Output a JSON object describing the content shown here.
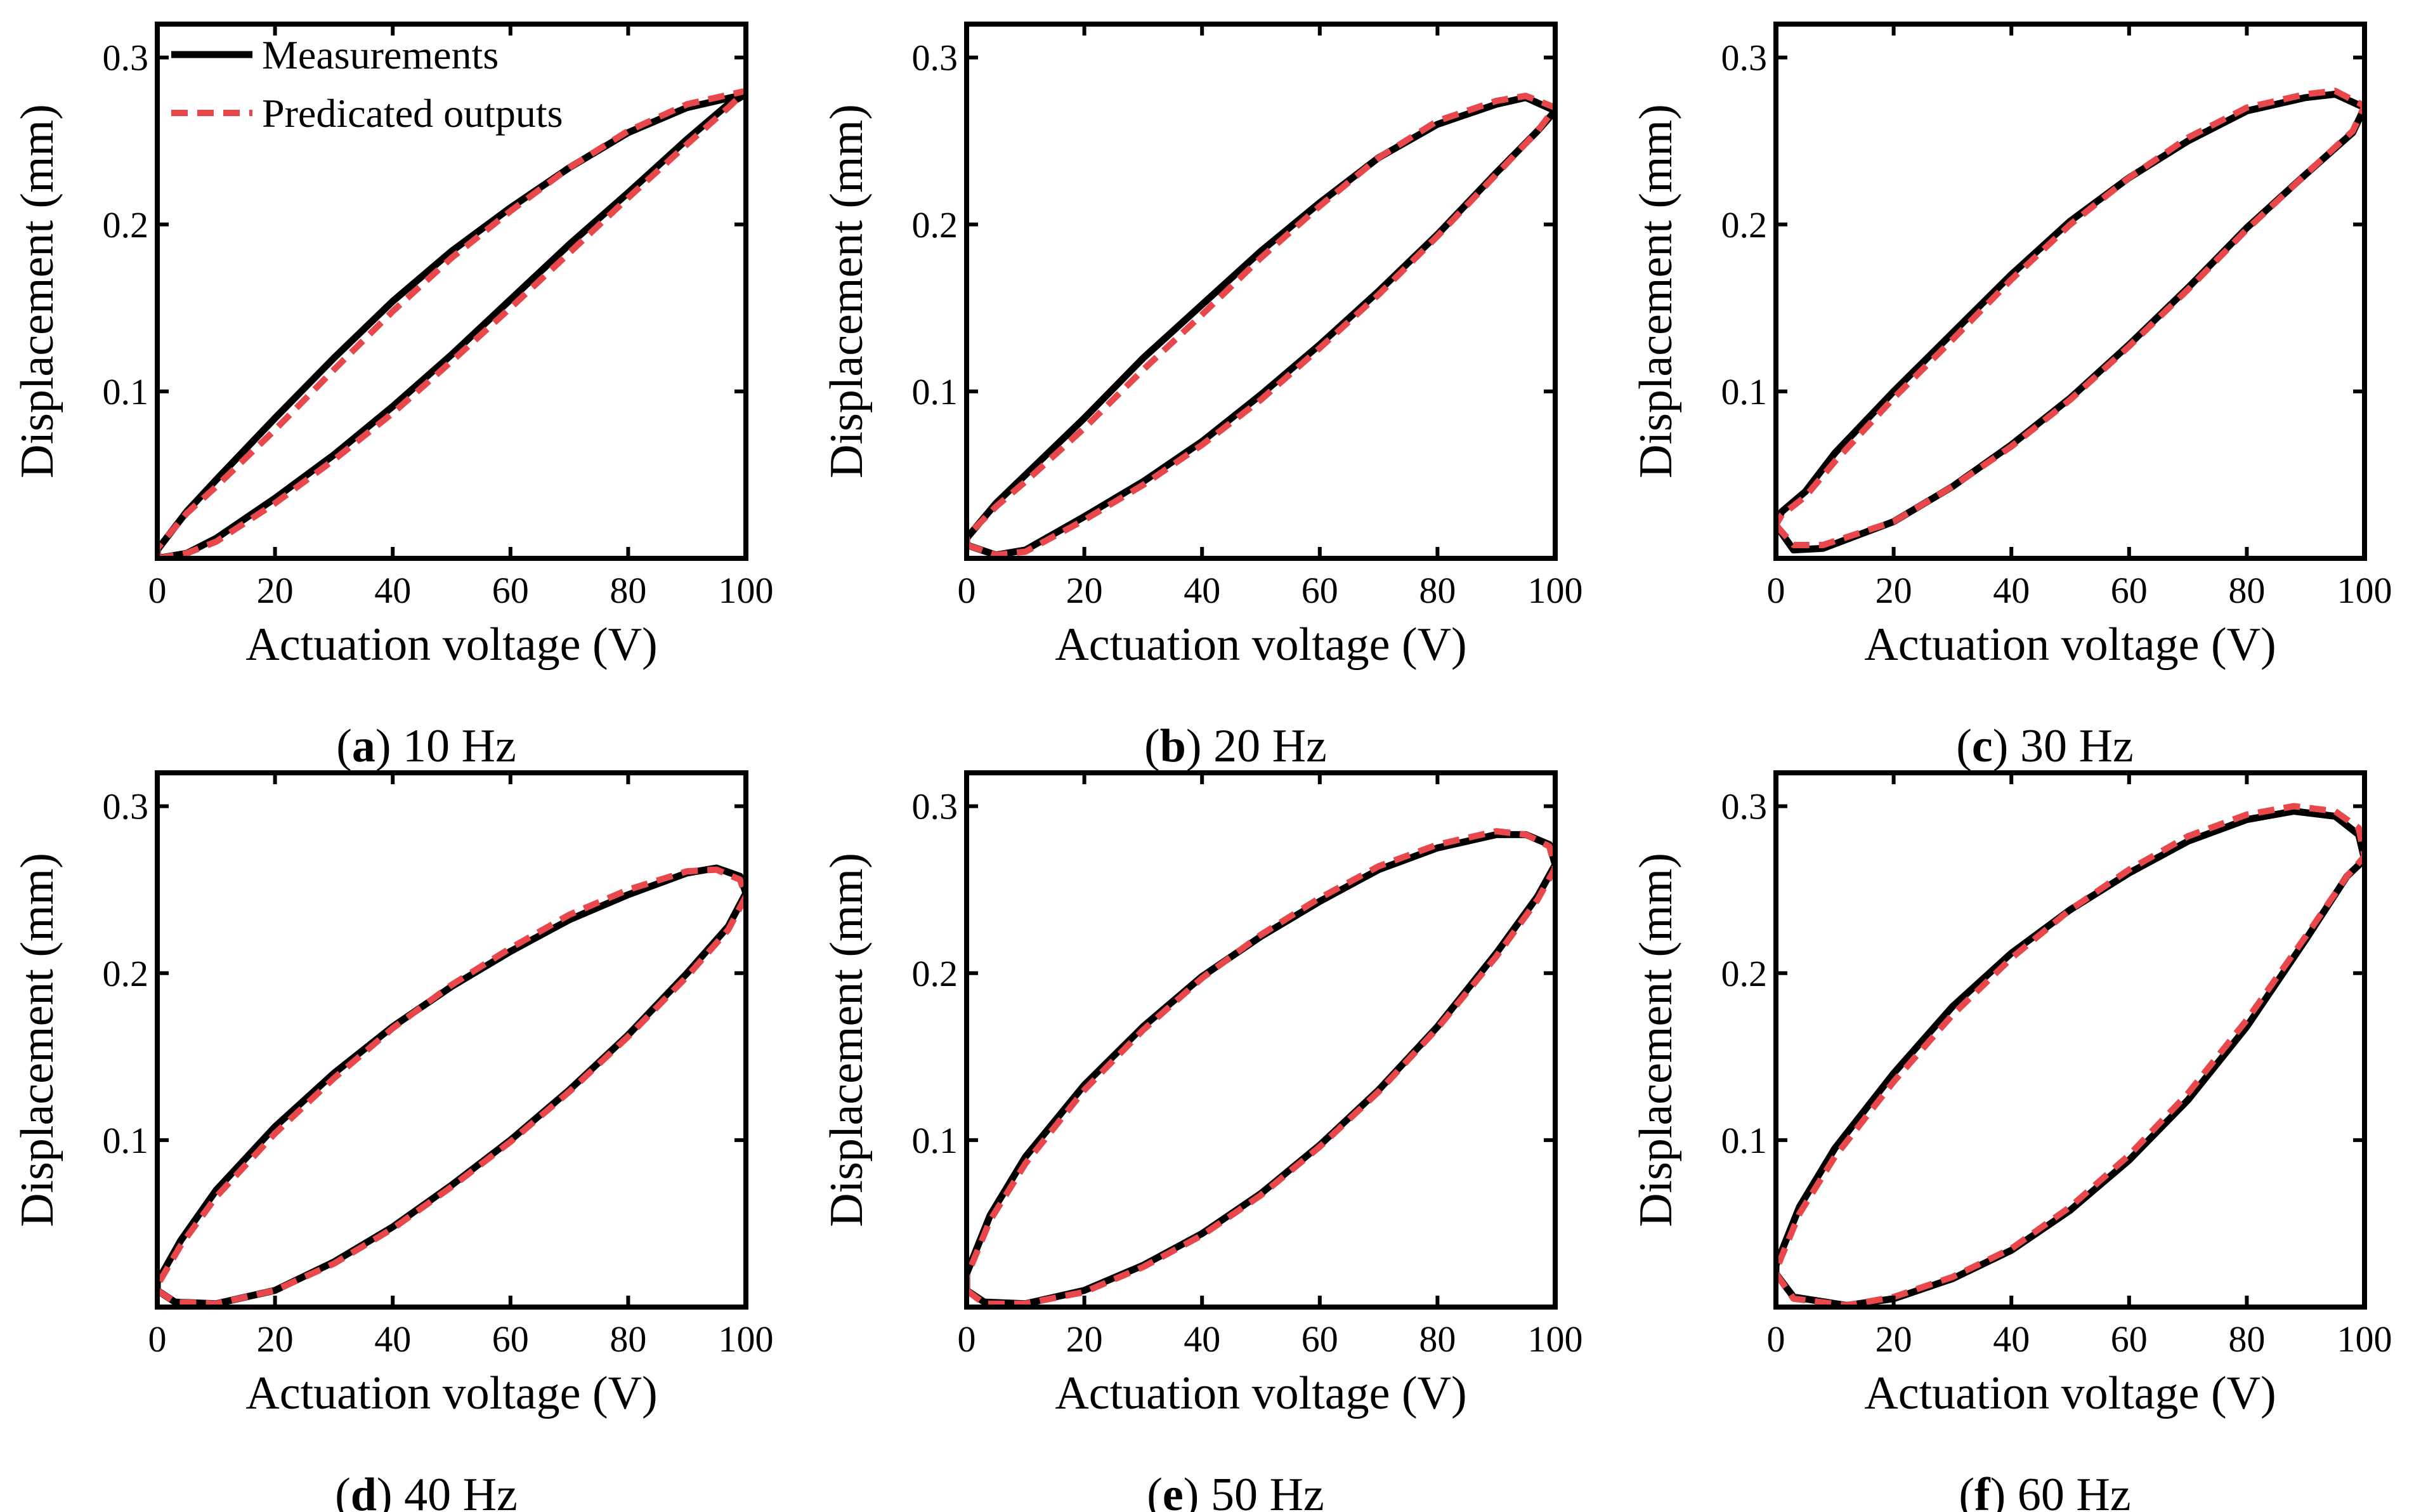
{
  "figure": {
    "legend": {
      "measurements_label": "Measurements",
      "predicted_label": "Predicated outputs",
      "measurements_color": "#000000",
      "predicted_color": "#e8474b"
    }
  },
  "chart_data": [
    {
      "type": "line",
      "panel_letter": "a",
      "caption_suffix": " 10 Hz",
      "xlabel": "Actuation voltage (V)",
      "ylabel": "Displacement (mm)",
      "xlim": [
        0,
        100
      ],
      "ylim": [
        0,
        0.32
      ],
      "xticks": [
        0,
        20,
        40,
        60,
        80,
        100
      ],
      "xtick_labels": [
        "0",
        "20",
        "40",
        "60",
        "80",
        "100"
      ],
      "yticks": [
        0.1,
        0.2,
        0.3
      ],
      "ytick_labels": [
        "0.1",
        "0.2",
        "0.3"
      ],
      "series": [
        {
          "name": "Measurements",
          "style": "solid",
          "x": [
            0,
            5,
            10,
            20,
            30,
            40,
            50,
            60,
            70,
            80,
            90,
            97,
            100,
            90,
            80,
            70,
            60,
            50,
            40,
            30,
            20,
            10,
            5,
            0
          ],
          "y": [
            0.0,
            0.003,
            0.012,
            0.036,
            0.062,
            0.091,
            0.122,
            0.155,
            0.188,
            0.219,
            0.251,
            0.272,
            0.278,
            0.27,
            0.255,
            0.234,
            0.21,
            0.184,
            0.154,
            0.12,
            0.084,
            0.047,
            0.028,
            0.005
          ]
        },
        {
          "name": "Predicated outputs",
          "style": "dashed",
          "x": [
            0,
            5,
            10,
            20,
            30,
            40,
            50,
            60,
            70,
            80,
            90,
            97,
            100,
            90,
            80,
            70,
            60,
            50,
            40,
            30,
            20,
            10,
            5,
            0
          ],
          "y": [
            0.0,
            0.003,
            0.01,
            0.033,
            0.059,
            0.087,
            0.118,
            0.15,
            0.183,
            0.216,
            0.248,
            0.27,
            0.28,
            0.272,
            0.256,
            0.234,
            0.208,
            0.18,
            0.148,
            0.113,
            0.077,
            0.043,
            0.027,
            0.006
          ]
        }
      ]
    },
    {
      "type": "line",
      "panel_letter": "b",
      "caption_suffix": " 20 Hz",
      "xlabel": "Actuation voltage (V)",
      "ylabel": "Displacement (mm)",
      "xlim": [
        0,
        100
      ],
      "ylim": [
        0,
        0.32
      ],
      "xticks": [
        0,
        20,
        40,
        60,
        80,
        100
      ],
      "xtick_labels": [
        "0",
        "20",
        "40",
        "60",
        "80",
        "100"
      ],
      "yticks": [
        0.1,
        0.2,
        0.3
      ],
      "ytick_labels": [
        "0.1",
        "0.2",
        "0.3"
      ],
      "series": [
        {
          "name": "Measurements",
          "style": "solid",
          "x": [
            0,
            5,
            10,
            20,
            30,
            40,
            50,
            60,
            70,
            80,
            90,
            97,
            100,
            95,
            90,
            80,
            70,
            60,
            50,
            40,
            30,
            20,
            10,
            5,
            0
          ],
          "y": [
            0.008,
            0.002,
            0.005,
            0.025,
            0.046,
            0.07,
            0.098,
            0.128,
            0.16,
            0.194,
            0.231,
            0.256,
            0.268,
            0.276,
            0.272,
            0.26,
            0.24,
            0.213,
            0.184,
            0.152,
            0.12,
            0.084,
            0.05,
            0.033,
            0.012
          ]
        },
        {
          "name": "Predicated outputs",
          "style": "dashed",
          "x": [
            0,
            5,
            10,
            20,
            30,
            40,
            50,
            60,
            70,
            80,
            90,
            97,
            100,
            95,
            90,
            80,
            70,
            60,
            50,
            40,
            30,
            20,
            10,
            5,
            0
          ],
          "y": [
            0.008,
            0.002,
            0.004,
            0.023,
            0.044,
            0.068,
            0.095,
            0.126,
            0.158,
            0.193,
            0.23,
            0.256,
            0.27,
            0.277,
            0.274,
            0.262,
            0.24,
            0.211,
            0.18,
            0.146,
            0.113,
            0.078,
            0.046,
            0.031,
            0.013
          ]
        }
      ]
    },
    {
      "type": "line",
      "panel_letter": "c",
      "caption_suffix": " 30 Hz",
      "xlabel": "Actuation voltage (V)",
      "ylabel": "Displacement (mm)",
      "xlim": [
        0,
        100
      ],
      "ylim": [
        0,
        0.32
      ],
      "xticks": [
        0,
        20,
        40,
        60,
        80,
        100
      ],
      "xtick_labels": [
        "0",
        "20",
        "40",
        "60",
        "80",
        "100"
      ],
      "yticks": [
        0.1,
        0.2,
        0.3
      ],
      "ytick_labels": [
        "0.1",
        "0.2",
        "0.3"
      ],
      "series": [
        {
          "name": "Measurements",
          "style": "solid",
          "x": [
            0,
            3,
            8,
            20,
            30,
            40,
            50,
            60,
            70,
            80,
            90,
            98,
            100,
            95,
            90,
            80,
            70,
            60,
            50,
            40,
            30,
            20,
            10,
            5,
            1,
            0
          ],
          "y": [
            0.02,
            0.005,
            0.006,
            0.022,
            0.043,
            0.068,
            0.096,
            0.128,
            0.162,
            0.198,
            0.23,
            0.255,
            0.27,
            0.278,
            0.276,
            0.268,
            0.25,
            0.228,
            0.202,
            0.17,
            0.135,
            0.1,
            0.063,
            0.04,
            0.028,
            0.02
          ]
        },
        {
          "name": "Predicated outputs",
          "style": "dashed",
          "x": [
            0,
            3,
            8,
            20,
            30,
            40,
            50,
            60,
            70,
            80,
            90,
            98,
            100,
            95,
            90,
            80,
            70,
            60,
            50,
            40,
            30,
            20,
            10,
            5,
            1,
            0
          ],
          "y": [
            0.02,
            0.008,
            0.008,
            0.022,
            0.043,
            0.067,
            0.095,
            0.127,
            0.161,
            0.197,
            0.23,
            0.256,
            0.271,
            0.28,
            0.278,
            0.27,
            0.252,
            0.228,
            0.2,
            0.167,
            0.131,
            0.096,
            0.058,
            0.037,
            0.026,
            0.02
          ]
        }
      ]
    },
    {
      "type": "line",
      "panel_letter": "d",
      "caption_suffix": " 40 Hz",
      "xlabel": "Actuation voltage (V)",
      "ylabel": "Displacement (mm)",
      "xlim": [
        0,
        100
      ],
      "ylim": [
        0,
        0.32
      ],
      "xticks": [
        0,
        20,
        40,
        60,
        80,
        100
      ],
      "xtick_labels": [
        "0",
        "20",
        "40",
        "60",
        "80",
        "100"
      ],
      "yticks": [
        0.1,
        0.2,
        0.3
      ],
      "ytick_labels": [
        "0.1",
        "0.2",
        "0.3"
      ],
      "series": [
        {
          "name": "Measurements",
          "style": "solid",
          "x": [
            0,
            3,
            10,
            20,
            30,
            40,
            50,
            60,
            70,
            80,
            90,
            97,
            100,
            99,
            95,
            90,
            80,
            70,
            60,
            50,
            40,
            30,
            20,
            10,
            4,
            0
          ],
          "y": [
            0.01,
            0.003,
            0.002,
            0.01,
            0.027,
            0.048,
            0.073,
            0.1,
            0.13,
            0.163,
            0.2,
            0.228,
            0.248,
            0.258,
            0.263,
            0.26,
            0.247,
            0.232,
            0.213,
            0.192,
            0.168,
            0.14,
            0.108,
            0.07,
            0.04,
            0.015
          ]
        },
        {
          "name": "Predicated outputs",
          "style": "dashed",
          "x": [
            0,
            3,
            10,
            20,
            30,
            40,
            50,
            60,
            70,
            80,
            90,
            97,
            100,
            99,
            95,
            90,
            80,
            70,
            60,
            50,
            40,
            30,
            20,
            10,
            4,
            0
          ],
          "y": [
            0.01,
            0.003,
            0.002,
            0.01,
            0.026,
            0.047,
            0.072,
            0.099,
            0.129,
            0.162,
            0.198,
            0.226,
            0.246,
            0.256,
            0.262,
            0.261,
            0.25,
            0.235,
            0.215,
            0.193,
            0.167,
            0.137,
            0.104,
            0.066,
            0.037,
            0.013
          ]
        }
      ]
    },
    {
      "type": "line",
      "panel_letter": "e",
      "caption_suffix": " 50 Hz",
      "xlabel": "Actuation voltage (V)",
      "ylabel": "Displacement (mm)",
      "xlim": [
        0,
        100
      ],
      "ylim": [
        0,
        0.32
      ],
      "xticks": [
        0,
        20,
        40,
        60,
        80,
        100
      ],
      "xtick_labels": [
        "0",
        "20",
        "40",
        "60",
        "80",
        "100"
      ],
      "yticks": [
        0.1,
        0.2,
        0.3
      ],
      "ytick_labels": [
        "0.1",
        "0.2",
        "0.3"
      ],
      "series": [
        {
          "name": "Measurements",
          "style": "solid",
          "x": [
            0,
            3,
            10,
            20,
            30,
            40,
            50,
            60,
            70,
            80,
            90,
            97,
            100,
            99,
            95,
            90,
            80,
            70,
            60,
            50,
            40,
            30,
            20,
            10,
            4,
            0
          ],
          "y": [
            0.01,
            0.003,
            0.002,
            0.01,
            0.025,
            0.044,
            0.068,
            0.097,
            0.13,
            0.168,
            0.212,
            0.246,
            0.265,
            0.277,
            0.283,
            0.283,
            0.275,
            0.262,
            0.243,
            0.222,
            0.198,
            0.168,
            0.133,
            0.09,
            0.055,
            0.02
          ]
        },
        {
          "name": "Predicated outputs",
          "style": "dashed",
          "x": [
            0,
            3,
            10,
            20,
            30,
            40,
            50,
            60,
            70,
            80,
            90,
            97,
            100,
            99,
            95,
            90,
            80,
            70,
            60,
            50,
            40,
            30,
            20,
            10,
            4,
            0
          ],
          "y": [
            0.01,
            0.002,
            0.002,
            0.009,
            0.024,
            0.043,
            0.067,
            0.096,
            0.129,
            0.167,
            0.21,
            0.244,
            0.263,
            0.276,
            0.283,
            0.285,
            0.277,
            0.264,
            0.245,
            0.223,
            0.197,
            0.166,
            0.13,
            0.086,
            0.052,
            0.018
          ]
        }
      ]
    },
    {
      "type": "line",
      "panel_letter": "f",
      "caption_suffix": " 60 Hz",
      "xlabel": "Actuation voltage (V)",
      "ylabel": "Displacement (mm)",
      "xlim": [
        0,
        100
      ],
      "ylim": [
        0,
        0.32
      ],
      "xticks": [
        0,
        20,
        40,
        60,
        80,
        100
      ],
      "xtick_labels": [
        "0",
        "20",
        "40",
        "60",
        "80",
        "100"
      ],
      "yticks": [
        0.1,
        0.2,
        0.3
      ],
      "ytick_labels": [
        "0.1",
        "0.2",
        "0.3"
      ],
      "series": [
        {
          "name": "Measurements",
          "style": "solid",
          "x": [
            0,
            3,
            12,
            20,
            30,
            40,
            50,
            60,
            70,
            80,
            90,
            97,
            100,
            99,
            95,
            88,
            80,
            70,
            60,
            50,
            40,
            30,
            20,
            10,
            4,
            0
          ],
          "y": [
            0.02,
            0.006,
            0.001,
            0.005,
            0.017,
            0.034,
            0.058,
            0.088,
            0.124,
            0.168,
            0.22,
            0.258,
            0.268,
            0.283,
            0.294,
            0.297,
            0.292,
            0.279,
            0.26,
            0.238,
            0.212,
            0.18,
            0.14,
            0.095,
            0.06,
            0.025
          ]
        },
        {
          "name": "Predicated outputs",
          "style": "dashed",
          "x": [
            0,
            3,
            12,
            20,
            30,
            40,
            50,
            60,
            70,
            80,
            90,
            97,
            100,
            99,
            95,
            88,
            80,
            70,
            60,
            50,
            40,
            30,
            20,
            10,
            4,
            0
          ],
          "y": [
            0.02,
            0.005,
            0.001,
            0.006,
            0.018,
            0.035,
            0.06,
            0.091,
            0.128,
            0.172,
            0.222,
            0.258,
            0.27,
            0.287,
            0.297,
            0.3,
            0.295,
            0.282,
            0.262,
            0.238,
            0.209,
            0.175,
            0.135,
            0.09,
            0.056,
            0.022
          ]
        }
      ]
    }
  ]
}
